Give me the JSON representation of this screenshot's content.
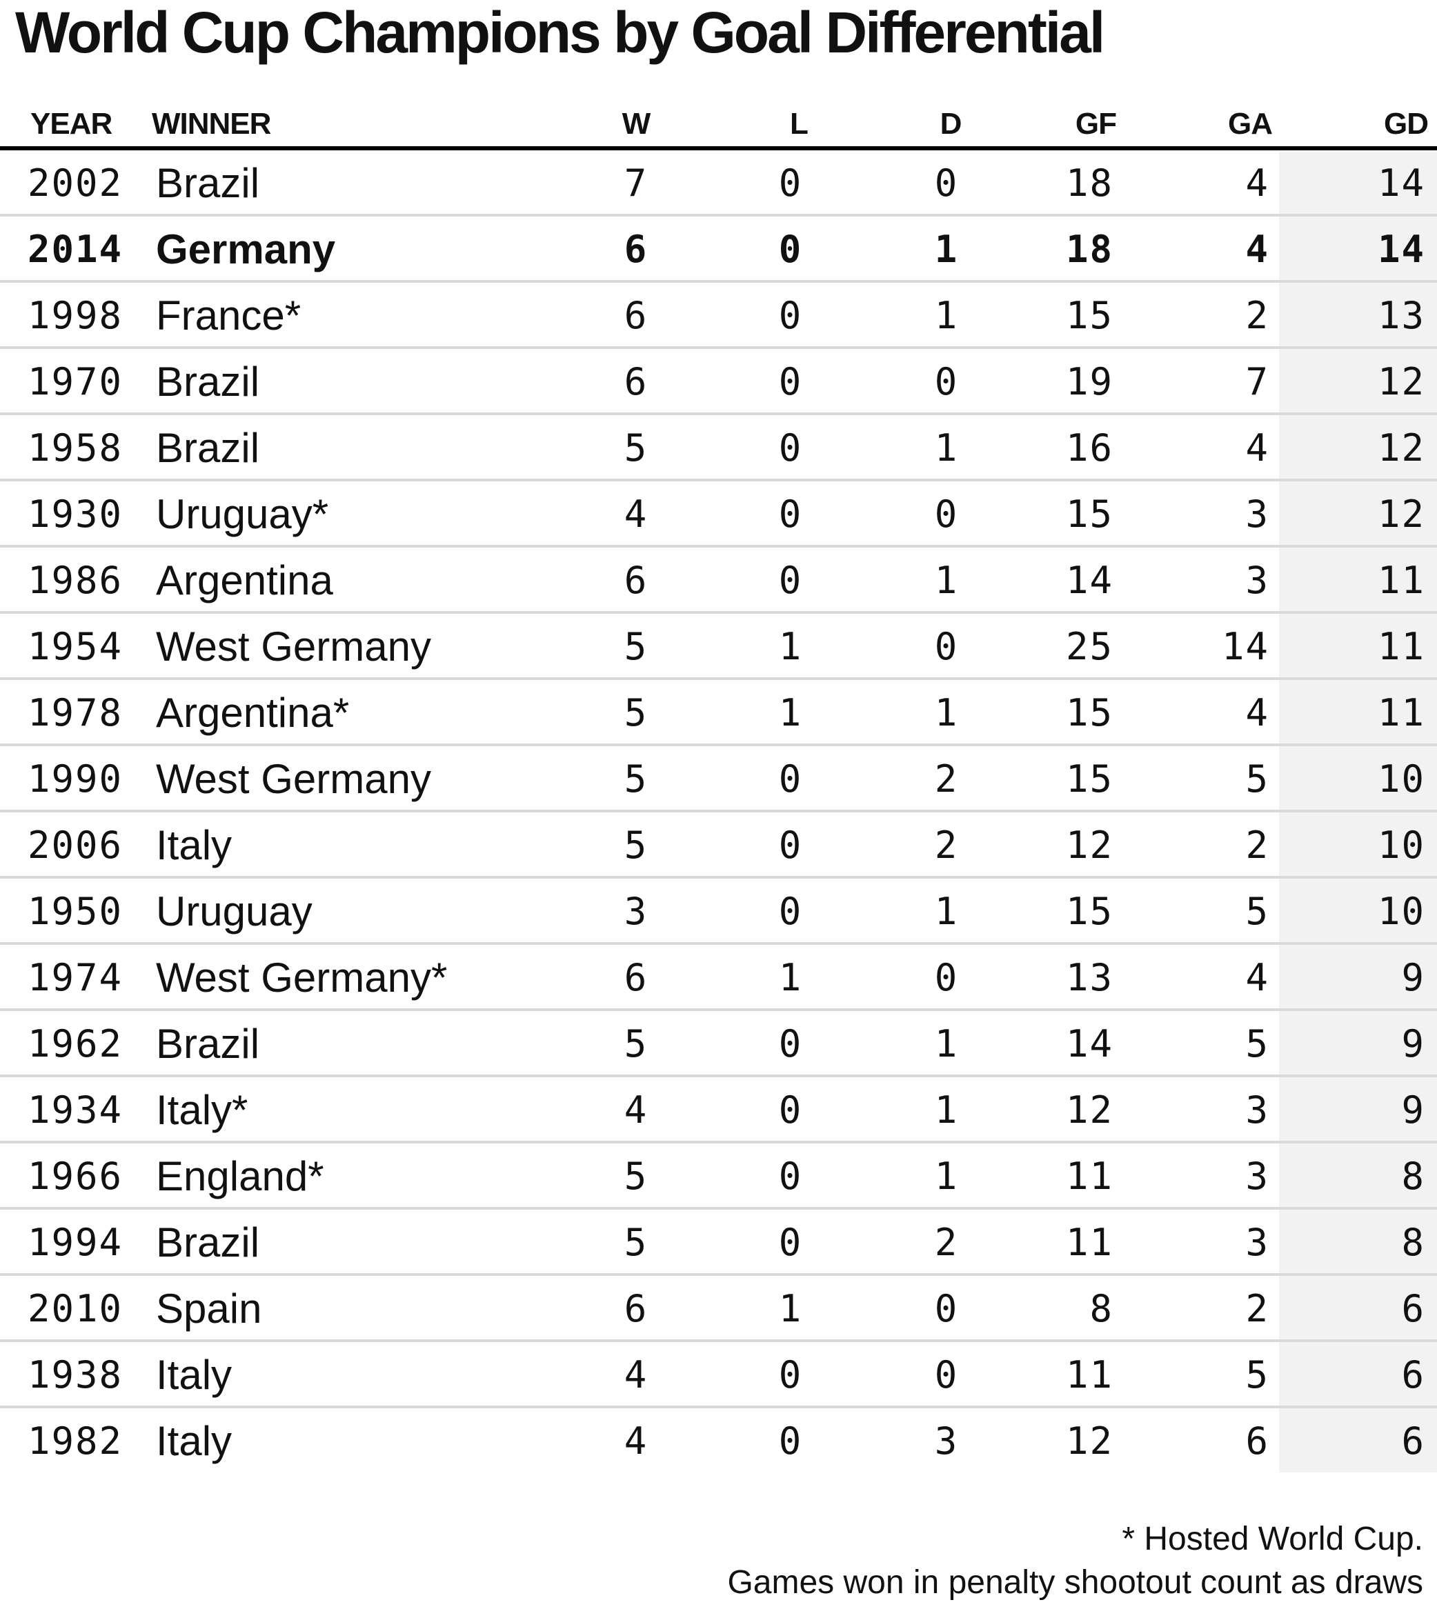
{
  "title": "World Cup Champions by Goal Differential",
  "columns": [
    "YEAR",
    "WINNER",
    "W",
    "L",
    "D",
    "GF",
    "GA",
    "GD"
  ],
  "highlight_color": "#f2f2f2",
  "rows": [
    {
      "year": "2002",
      "winner": "Brazil",
      "w": "7",
      "l": "0",
      "d": "0",
      "gf": "18",
      "ga": "4",
      "gd": "14",
      "bold": false
    },
    {
      "year": "2014",
      "winner": "Germany",
      "w": "6",
      "l": "0",
      "d": "1",
      "gf": "18",
      "ga": "4",
      "gd": "14",
      "bold": true
    },
    {
      "year": "1998",
      "winner": "France*",
      "w": "6",
      "l": "0",
      "d": "1",
      "gf": "15",
      "ga": "2",
      "gd": "13",
      "bold": false
    },
    {
      "year": "1970",
      "winner": "Brazil",
      "w": "6",
      "l": "0",
      "d": "0",
      "gf": "19",
      "ga": "7",
      "gd": "12",
      "bold": false
    },
    {
      "year": "1958",
      "winner": "Brazil",
      "w": "5",
      "l": "0",
      "d": "1",
      "gf": "16",
      "ga": "4",
      "gd": "12",
      "bold": false
    },
    {
      "year": "1930",
      "winner": "Uruguay*",
      "w": "4",
      "l": "0",
      "d": "0",
      "gf": "15",
      "ga": "3",
      "gd": "12",
      "bold": false
    },
    {
      "year": "1986",
      "winner": "Argentina",
      "w": "6",
      "l": "0",
      "d": "1",
      "gf": "14",
      "ga": "3",
      "gd": "11",
      "bold": false
    },
    {
      "year": "1954",
      "winner": "West Germany",
      "w": "5",
      "l": "1",
      "d": "0",
      "gf": "25",
      "ga": "14",
      "gd": "11",
      "bold": false
    },
    {
      "year": "1978",
      "winner": "Argentina*",
      "w": "5",
      "l": "1",
      "d": "1",
      "gf": "15",
      "ga": "4",
      "gd": "11",
      "bold": false
    },
    {
      "year": "1990",
      "winner": "West Germany",
      "w": "5",
      "l": "0",
      "d": "2",
      "gf": "15",
      "ga": "5",
      "gd": "10",
      "bold": false
    },
    {
      "year": "2006",
      "winner": "Italy",
      "w": "5",
      "l": "0",
      "d": "2",
      "gf": "12",
      "ga": "2",
      "gd": "10",
      "bold": false
    },
    {
      "year": "1950",
      "winner": "Uruguay",
      "w": "3",
      "l": "0",
      "d": "1",
      "gf": "15",
      "ga": "5",
      "gd": "10",
      "bold": false
    },
    {
      "year": "1974",
      "winner": "West Germany*",
      "w": "6",
      "l": "1",
      "d": "0",
      "gf": "13",
      "ga": "4",
      "gd": "9",
      "bold": false
    },
    {
      "year": "1962",
      "winner": "Brazil",
      "w": "5",
      "l": "0",
      "d": "1",
      "gf": "14",
      "ga": "5",
      "gd": "9",
      "bold": false
    },
    {
      "year": "1934",
      "winner": "Italy*",
      "w": "4",
      "l": "0",
      "d": "1",
      "gf": "12",
      "ga": "3",
      "gd": "9",
      "bold": false
    },
    {
      "year": "1966",
      "winner": "England*",
      "w": "5",
      "l": "0",
      "d": "1",
      "gf": "11",
      "ga": "3",
      "gd": "8",
      "bold": false
    },
    {
      "year": "1994",
      "winner": "Brazil",
      "w": "5",
      "l": "0",
      "d": "2",
      "gf": "11",
      "ga": "3",
      "gd": "8",
      "bold": false
    },
    {
      "year": "2010",
      "winner": "Spain",
      "w": "6",
      "l": "1",
      "d": "0",
      "gf": "8",
      "ga": "2",
      "gd": "6",
      "bold": false
    },
    {
      "year": "1938",
      "winner": "Italy",
      "w": "4",
      "l": "0",
      "d": "0",
      "gf": "11",
      "ga": "5",
      "gd": "6",
      "bold": false
    },
    {
      "year": "1982",
      "winner": "Italy",
      "w": "4",
      "l": "0",
      "d": "3",
      "gf": "12",
      "ga": "6",
      "gd": "6",
      "bold": false
    }
  ],
  "footnotes": [
    "* Hosted World Cup.",
    "Games won in penalty shootout count as draws"
  ]
}
